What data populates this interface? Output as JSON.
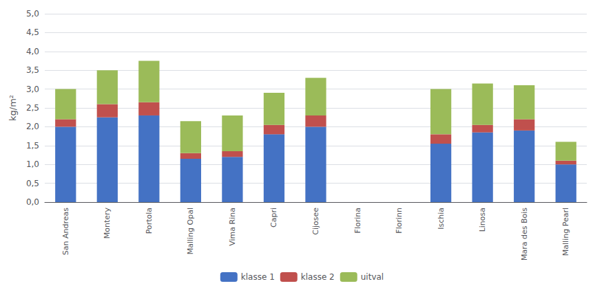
{
  "chart_data": {
    "type": "bar",
    "stacked": true,
    "categories": [
      "San Andreas",
      "Montery",
      "Portola",
      "Malling Opal",
      "Vima Rina",
      "Capri",
      "Cijosee",
      "Florina",
      "Florinn",
      "Ischia",
      "Linosa",
      "Mara des Bois",
      "Malling Pearl"
    ],
    "series": [
      {
        "name": "klasse 1",
        "color": "#4472C4",
        "values": [
          2.0,
          2.25,
          2.3,
          1.15,
          1.2,
          1.8,
          2.0,
          0.0,
          0.0,
          1.55,
          1.85,
          1.9,
          1.0
        ]
      },
      {
        "name": "klasse 2",
        "color": "#C0504D",
        "values": [
          0.2,
          0.35,
          0.35,
          0.15,
          0.15,
          0.25,
          0.3,
          0.0,
          0.0,
          0.25,
          0.2,
          0.3,
          0.1
        ]
      },
      {
        "name": "uitval",
        "color": "#9BBB59",
        "values": [
          0.8,
          0.9,
          1.1,
          0.85,
          0.95,
          0.85,
          1.0,
          0.0,
          0.0,
          1.2,
          1.1,
          0.9,
          0.5
        ]
      }
    ],
    "ylabel": "kg/m²",
    "ylim": [
      0,
      5.0
    ],
    "yticks": [
      {
        "value": 0.0,
        "label": "0,0"
      },
      {
        "value": 0.5,
        "label": "0,5"
      },
      {
        "value": 1.0,
        "label": "1,0"
      },
      {
        "value": 1.5,
        "label": "1,5"
      },
      {
        "value": 2.0,
        "label": "2,0"
      },
      {
        "value": 2.5,
        "label": "2,5"
      },
      {
        "value": 3.0,
        "label": "3,0"
      },
      {
        "value": 3.5,
        "label": "3,5"
      },
      {
        "value": 4.0,
        "label": "4,0"
      },
      {
        "value": 4.5,
        "label": "4,5"
      },
      {
        "value": 5.0,
        "label": "5,0"
      }
    ],
    "grid": true,
    "legend": "bottom"
  }
}
